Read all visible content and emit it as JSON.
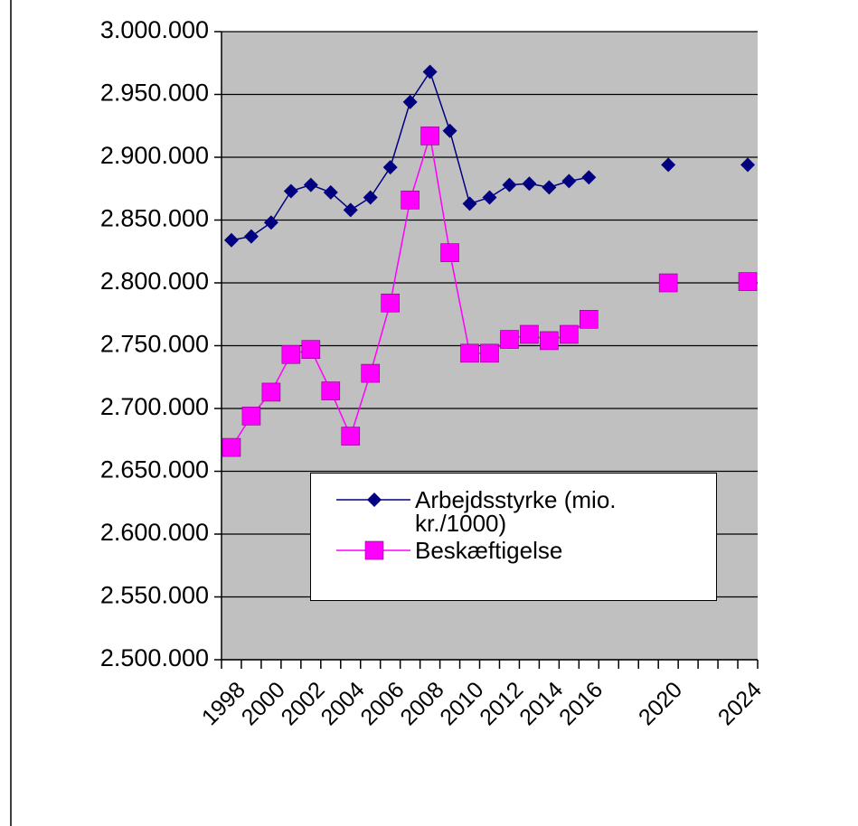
{
  "chart_data": {
    "type": "line",
    "categories": [
      "1998",
      null,
      "2000",
      null,
      "2002",
      null,
      "2004",
      null,
      "2006",
      null,
      "2008",
      null,
      "2010",
      null,
      "2012",
      null,
      "2014",
      null,
      "2016",
      null,
      null,
      null,
      "2020",
      null,
      null,
      null,
      "2024"
    ],
    "series": [
      {
        "name": "Arbejdsstyrke (mio. kr./1000)",
        "color": "#000080",
        "marker": "diamond",
        "values": [
          2834000,
          2837000,
          2848000,
          2873000,
          2878000,
          2872000,
          2858000,
          2868000,
          2892000,
          2944000,
          2968000,
          2921000,
          2863000,
          2868000,
          2878000,
          2879000,
          2876000,
          2881000,
          2884000,
          null,
          null,
          null,
          2894000,
          null,
          null,
          null,
          2894000
        ]
      },
      {
        "name": "Beskæftigelse",
        "color": "#ff00ff",
        "marker": "square",
        "values": [
          2669000,
          2694000,
          2713000,
          2743000,
          2747000,
          2714000,
          2678000,
          2728000,
          2784000,
          2866000,
          2917000,
          2824000,
          2744000,
          2744000,
          2755000,
          2759000,
          2754000,
          2759000,
          2771000,
          null,
          null,
          null,
          2800000,
          null,
          null,
          null,
          2801000
        ]
      }
    ],
    "ylim": [
      2500000,
      3000000
    ],
    "yticks": [
      {
        "value": 2500000,
        "label": "2.500.000"
      },
      {
        "value": 2550000,
        "label": "2.550.000"
      },
      {
        "value": 2600000,
        "label": "2.600.000"
      },
      {
        "value": 2650000,
        "label": "2.650.000"
      },
      {
        "value": 2700000,
        "label": "2.700.000"
      },
      {
        "value": 2750000,
        "label": "2.750.000"
      },
      {
        "value": 2800000,
        "label": "2.800.000"
      },
      {
        "value": 2850000,
        "label": "2.850.000"
      },
      {
        "value": 2900000,
        "label": "2.900.000"
      },
      {
        "value": 2950000,
        "label": "2.950.000"
      },
      {
        "value": 3000000,
        "label": "3.000.000"
      }
    ],
    "grid": true,
    "plot_background": "#c0c0c0"
  }
}
